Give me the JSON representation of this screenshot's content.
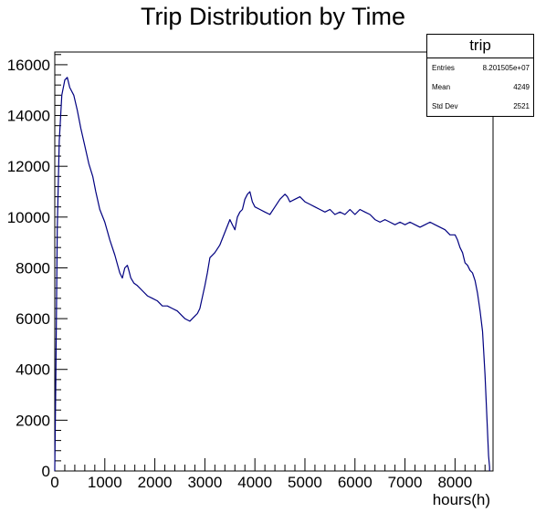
{
  "chart_data": {
    "type": "line",
    "title": "Trip Distribution by Time",
    "xlabel": "hours(h)",
    "ylabel": "",
    "xlim": [
      0,
      8760
    ],
    "ylim": [
      0,
      16500
    ],
    "xticks": [
      0,
      1000,
      2000,
      3000,
      4000,
      5000,
      6000,
      7000,
      8000
    ],
    "yticks": [
      0,
      2000,
      4000,
      6000,
      8000,
      10000,
      12000,
      14000,
      16000
    ],
    "grid": false,
    "line_color": "#000080",
    "series": [
      {
        "x": [
          0,
          20,
          50,
          90,
          140,
          200,
          250,
          300,
          380,
          450,
          520,
          600,
          680,
          760,
          820,
          900,
          1000,
          1100,
          1200,
          1300,
          1350,
          1400,
          1450,
          1480,
          1520,
          1580,
          1650,
          1750,
          1850,
          1950,
          2050,
          2150,
          2250,
          2350,
          2450,
          2550,
          2600,
          2700,
          2750,
          2800,
          2850,
          2900,
          3000,
          3050,
          3100,
          3200,
          3300,
          3400,
          3500,
          3550,
          3600,
          3650,
          3700,
          3750,
          3800,
          3850,
          3900,
          3950,
          4000,
          4100,
          4200,
          4300,
          4400,
          4500,
          4600,
          4650,
          4700,
          4800,
          4900,
          5000,
          5100,
          5200,
          5300,
          5400,
          5500,
          5600,
          5700,
          5800,
          5900,
          6000,
          6100,
          6200,
          6300,
          6400,
          6500,
          6600,
          6700,
          6800,
          6900,
          7000,
          7100,
          7200,
          7300,
          7400,
          7500,
          7600,
          7700,
          7800,
          7900,
          8000,
          8050,
          8100,
          8150,
          8200,
          8250,
          8300,
          8350,
          8400,
          8450,
          8500,
          8550,
          8600,
          8640,
          8670,
          8690
        ],
        "values": [
          100,
          3500,
          9500,
          13000,
          14800,
          15400,
          15500,
          15100,
          14800,
          14200,
          13500,
          12800,
          12100,
          11600,
          11000,
          10300,
          9800,
          9100,
          8500,
          7800,
          7600,
          8000,
          8100,
          7900,
          7600,
          7400,
          7300,
          7100,
          6900,
          6800,
          6700,
          6500,
          6500,
          6400,
          6300,
          6100,
          6000,
          5900,
          6000,
          6100,
          6200,
          6400,
          7300,
          7800,
          8400,
          8600,
          8900,
          9400,
          9900,
          9700,
          9500,
          10000,
          10200,
          10300,
          10700,
          10900,
          11000,
          10600,
          10400,
          10300,
          10200,
          10100,
          10400,
          10700,
          10900,
          10800,
          10600,
          10700,
          10800,
          10600,
          10500,
          10400,
          10300,
          10200,
          10300,
          10100,
          10200,
          10100,
          10300,
          10100,
          10300,
          10200,
          10100,
          9900,
          9800,
          9900,
          9800,
          9700,
          9800,
          9700,
          9800,
          9700,
          9600,
          9700,
          9800,
          9700,
          9600,
          9500,
          9300,
          9300,
          9100,
          8800,
          8600,
          8200,
          8100,
          7900,
          7800,
          7500,
          7000,
          6300,
          5500,
          3800,
          2000,
          600,
          150
        ]
      }
    ]
  },
  "stats": {
    "name": "trip",
    "rows": [
      {
        "label": "Entries",
        "value": "8.201505e+07"
      },
      {
        "label": "Mean",
        "value": "4249"
      },
      {
        "label": "Std Dev",
        "value": "2521"
      }
    ]
  }
}
